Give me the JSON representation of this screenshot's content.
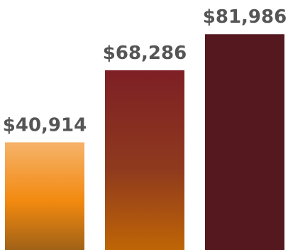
{
  "chart_data": {
    "type": "bar",
    "categories": [
      "",
      "",
      ""
    ],
    "values": [
      40914,
      68286,
      81986
    ],
    "data_labels": [
      "$40,914",
      "$68,286",
      "$81,986"
    ],
    "ylim": [
      0,
      95000
    ],
    "grid": false,
    "bar_styles": [
      {
        "gradient": [
          "#f6b36a",
          "#f2890f",
          "#a06217"
        ]
      },
      {
        "gradient": [
          "#7e1f25",
          "#8f3a1e",
          "#bf6506"
        ]
      },
      {
        "gradient": [
          "#55181e",
          "#55181e",
          "#55181e"
        ]
      }
    ],
    "label_color": "#555555"
  }
}
